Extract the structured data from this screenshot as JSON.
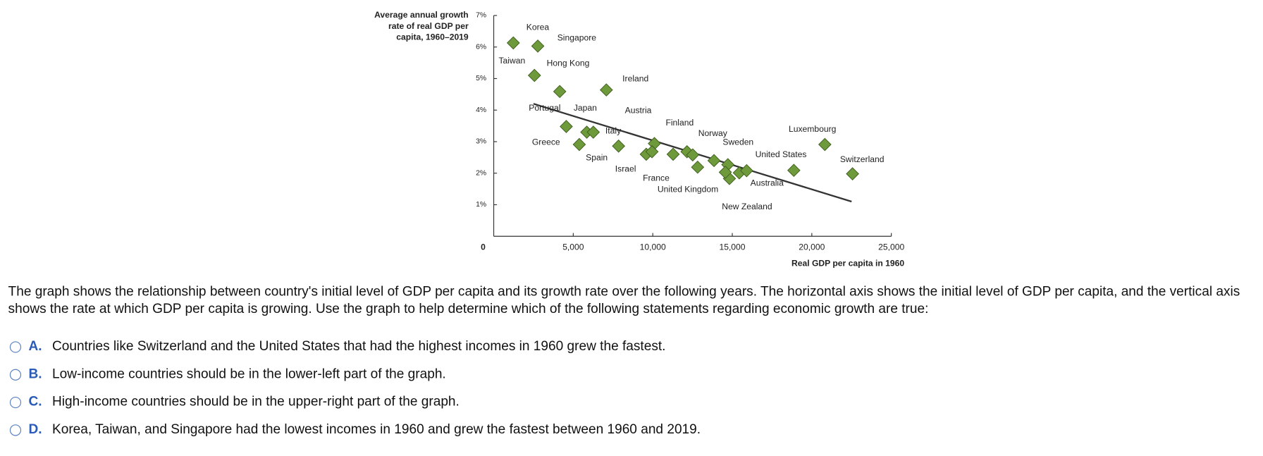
{
  "chart_data": {
    "type": "scatter",
    "y_label": [
      "Average annual growth",
      "rate of real GDP per",
      "capita, 1960–2019"
    ],
    "x_label": "Real GDP per capita in 1960",
    "labels": [
      "Korea",
      "Singapore",
      "Taiwan",
      "Hong Kong",
      "Ireland",
      "Portugal",
      "Japan",
      "Italy",
      "Greece",
      "Spain",
      "Austria",
      "Finland",
      "Israel",
      "France",
      "Norway",
      "United Kingdom",
      "Sweden",
      "United States",
      "Luxembourg",
      "Switzerland",
      "Australia",
      "New Zealand",
      null,
      null,
      null,
      null
    ],
    "x": [
      1230,
      2770,
      2560,
      4150,
      7080,
      4560,
      5850,
      6260,
      5380,
      7850,
      10100,
      11280,
      9590,
      9950,
      12150,
      12820,
      13850,
      18870,
      20820,
      22560,
      15440,
      14820,
      12510,
      14720,
      14560,
      15900
    ],
    "values": [
      6.13,
      6.03,
      5.1,
      4.59,
      4.64,
      3.48,
      3.3,
      3.3,
      2.91,
      2.86,
      2.94,
      2.6,
      2.6,
      2.68,
      2.68,
      2.19,
      2.4,
      2.09,
      2.91,
      1.98,
      2.01,
      1.83,
      2.58,
      2.27,
      2.03,
      2.08
    ],
    "color": "#6e9a3c",
    "trend": {
      "x": [
        2500,
        22500
      ],
      "values": [
        4.2,
        1.1
      ],
      "color": "#333333"
    },
    "xlim": [
      0,
      25000
    ],
    "ylim": [
      0,
      7
    ],
    "xticks": [
      {
        "value": 5000,
        "label": "5,000"
      },
      {
        "value": 10000,
        "label": "10,000"
      },
      {
        "value": 15000,
        "label": "15,000"
      },
      {
        "value": 20000,
        "label": "20,000"
      },
      {
        "value": 25000,
        "label": "25,000"
      }
    ],
    "yticks": [
      0,
      {
        "value": 1,
        "label": "1%"
      },
      {
        "value": 2,
        "label": "2%"
      },
      {
        "value": 3,
        "label": "3%"
      },
      {
        "value": 4,
        "label": "4%"
      },
      {
        "value": 5,
        "label": "5%"
      },
      {
        "value": 6,
        "label": "6%"
      },
      {
        "value": 7,
        "label": "7%"
      }
    ]
  },
  "question": {
    "text": "The graph shows the relationship between country's initial level of GDP per capita and its growth rate over the following years.  The horizontal axis shows the initial level of GDP per capita, and the vertical axis shows the rate at which GDP per capita is growing.  Use the graph to help determine which of the following statements regarding economic growth are true:",
    "options": [
      {
        "letter": "A.",
        "text": "Countries like Switzerland and the United States that had the highest incomes in 1960 grew the fastest."
      },
      {
        "letter": "B.",
        "text": "Low-income countries should be in the lower-left part of the graph."
      },
      {
        "letter": "C.",
        "text": "High-income countries should be in the upper-right part of the graph."
      },
      {
        "letter": "D.",
        "text": "Korea, Taiwan, and Singapore had the lowest incomes in 1960 and grew the fastest between 1960 and 2019."
      }
    ]
  }
}
